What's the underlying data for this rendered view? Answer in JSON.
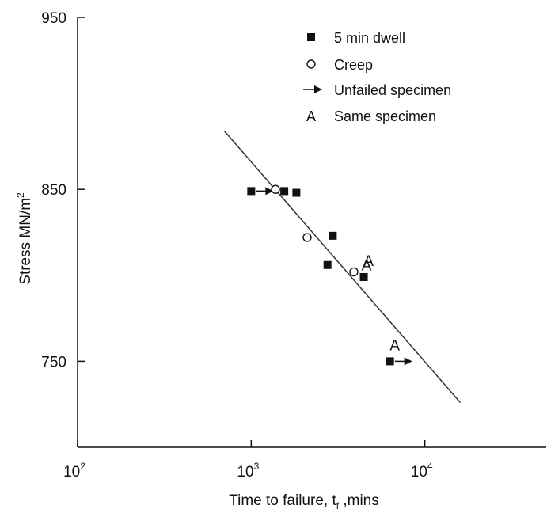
{
  "chart_data": {
    "type": "scatter",
    "xlabel": "Time to failure, t",
    "xlabel_subscript": "f",
    "xlabel_suffix": " ,mins",
    "ylabel": "Stress MN/m",
    "ylabel_superscript": "2",
    "xscale": "log",
    "xlim": [
      100,
      50000
    ],
    "ylim": [
      700,
      950
    ],
    "x_ticks": [
      {
        "value": 100,
        "base": "10",
        "exp": "2"
      },
      {
        "value": 1000,
        "base": "10",
        "exp": "3"
      },
      {
        "value": 10000,
        "base": "10",
        "exp": "4"
      }
    ],
    "y_ticks": [
      {
        "value": 950,
        "label": "950"
      },
      {
        "value": 850,
        "label": "850"
      },
      {
        "value": 750,
        "label": "750"
      }
    ],
    "grid": false,
    "legend_position": "top-right",
    "legend": [
      {
        "symbol": "filled-square",
        "label": "5 min dwell"
      },
      {
        "symbol": "open-circle",
        "label": "Creep"
      },
      {
        "symbol": "arrow",
        "label": "Unfailed specimen"
      },
      {
        "symbol": "letter-A",
        "letter": "A",
        "label": "Same specimen"
      }
    ],
    "series": [
      {
        "name": "5 min dwell",
        "marker": "filled-square",
        "points": [
          {
            "x": 1000,
            "y": 849,
            "unfailed": true
          },
          {
            "x": 1550,
            "y": 849
          },
          {
            "x": 1820,
            "y": 848
          },
          {
            "x": 2950,
            "y": 823
          },
          {
            "x": 2750,
            "y": 806
          },
          {
            "x": 4450,
            "y": 799,
            "annotation": "A"
          },
          {
            "x": 6300,
            "y": 750,
            "unfailed": true,
            "annotation": "A"
          }
        ]
      },
      {
        "name": "Creep",
        "marker": "open-circle",
        "points": [
          {
            "x": 1380,
            "y": 850
          },
          {
            "x": 2100,
            "y": 822
          },
          {
            "x": 3900,
            "y": 802,
            "annotation": "A"
          }
        ]
      }
    ],
    "trend_line": {
      "x": [
        700,
        16000
      ],
      "y": [
        884,
        726
      ]
    }
  }
}
